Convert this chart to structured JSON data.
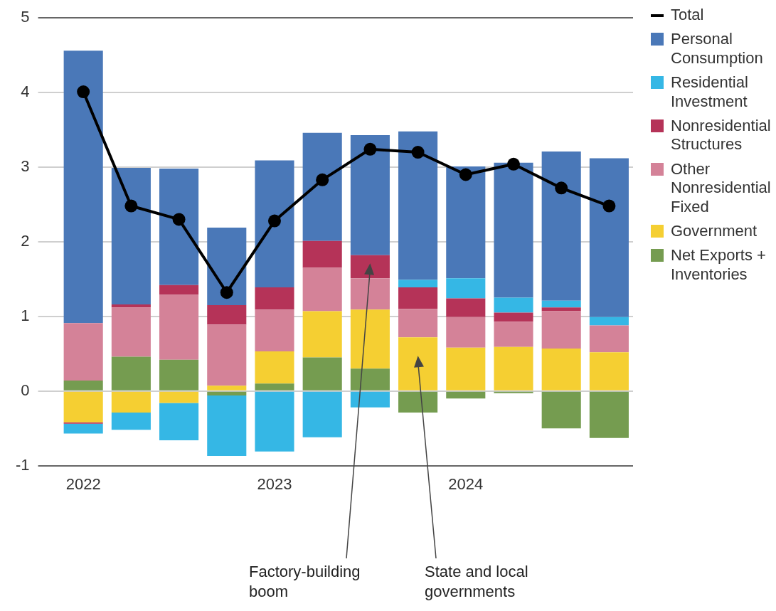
{
  "chart_data": {
    "type": "bar",
    "stacked": true,
    "categories": [
      "2022",
      null,
      null,
      null,
      "2023",
      null,
      null,
      null,
      "2024",
      null,
      null,
      null
    ],
    "series": [
      {
        "name": "Net Exports + Inventories",
        "color": "#759c50",
        "values": [
          0.14,
          0.46,
          0.42,
          -0.06,
          0.1,
          0.45,
          0.3,
          -0.29,
          -0.1,
          -0.03,
          -0.5,
          -0.63
        ]
      },
      {
        "name": "Government",
        "color": "#f5cf32",
        "values": [
          -0.42,
          -0.29,
          -0.16,
          0.07,
          0.43,
          0.62,
          0.79,
          0.72,
          0.58,
          0.59,
          0.57,
          0.52
        ]
      },
      {
        "name": "Other Nonresidential Fixed",
        "color": "#d48298",
        "values": [
          0.77,
          0.66,
          0.87,
          0.82,
          0.56,
          0.58,
          0.42,
          0.38,
          0.41,
          0.34,
          0.5,
          0.36
        ]
      },
      {
        "name": "Nonresidential Structures",
        "color": "#b53358",
        "values": [
          -0.02,
          0.04,
          0.13,
          0.26,
          0.3,
          0.36,
          0.31,
          0.29,
          0.25,
          0.12,
          0.05,
          0
        ]
      },
      {
        "name": "Residential Investment",
        "color": "#35b7e5",
        "values": [
          -0.13,
          -0.23,
          -0.5,
          -0.81,
          -0.81,
          -0.62,
          -0.22,
          0.1,
          0.27,
          0.2,
          0.09,
          0.11
        ]
      },
      {
        "name": "Personal Consumption",
        "color": "#4a78b8",
        "values": [
          3.65,
          1.83,
          1.56,
          1.04,
          1.7,
          1.45,
          1.61,
          1.99,
          1.5,
          1.81,
          2.0,
          2.13
        ]
      },
      {
        "name": "Total",
        "type": "line",
        "color": "#000000",
        "values": [
          4.01,
          2.48,
          2.3,
          1.32,
          2.28,
          2.83,
          3.24,
          3.2,
          2.9,
          3.04,
          2.72,
          2.48
        ]
      }
    ],
    "ylim": [
      -1,
      5
    ],
    "yticks": [
      -1,
      0,
      1,
      2,
      3,
      4,
      5
    ],
    "grid": "y",
    "legend": "right",
    "marker": "circle",
    "line_style": "solid",
    "annotations": [
      "Factory-building boom",
      "State and local governments"
    ]
  }
}
